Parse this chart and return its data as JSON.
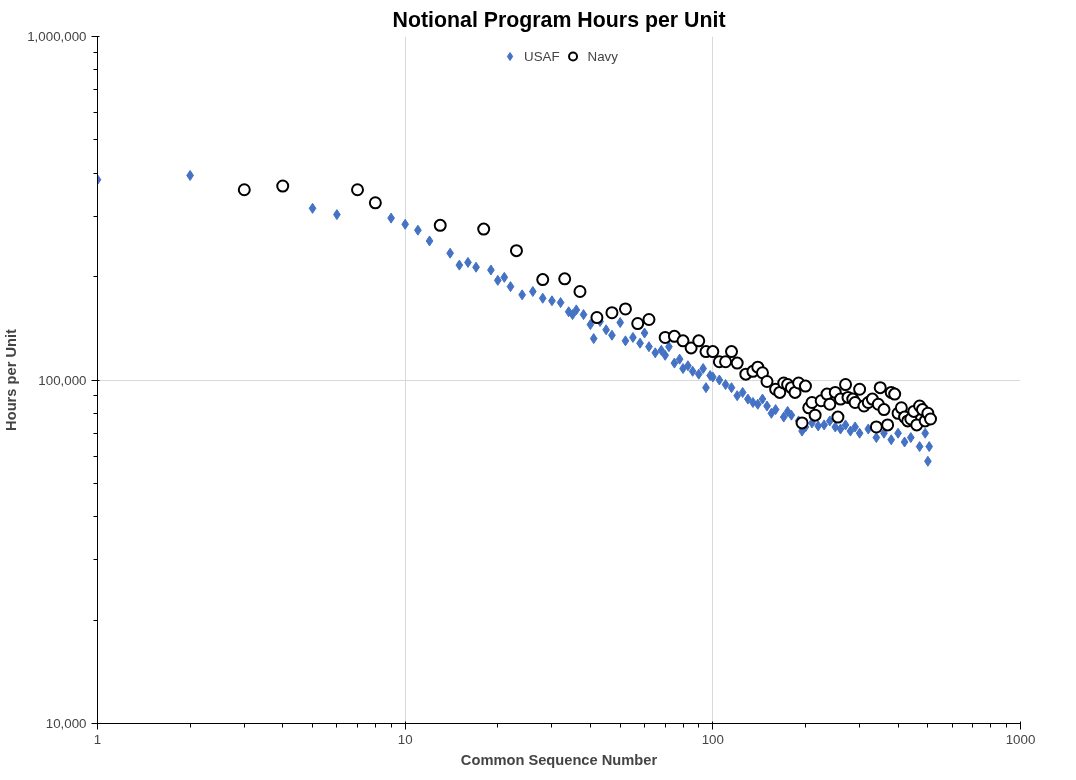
{
  "chart_data": {
    "type": "scatter",
    "title": "Notional Program Hours per Unit",
    "xlabel": "Common Sequence Number",
    "ylabel": "Hours per Unit",
    "log": "xy",
    "grid": true,
    "legend": "top",
    "xlim": [
      1,
      1000
    ],
    "ylim": [
      10000,
      1000000
    ],
    "xticks": [
      1,
      10,
      100,
      1000
    ],
    "yticks": [
      {
        "value": 10000,
        "label": "10,000"
      },
      {
        "value": 100000,
        "label": "100,000"
      },
      {
        "value": 1000000,
        "label": "1,000,000"
      }
    ],
    "series": [
      {
        "name": "USAF",
        "color": "#4472c4",
        "marker": "diamond",
        "x": [
          1,
          2,
          5,
          6,
          9,
          10,
          11,
          12,
          14,
          15,
          16,
          17,
          19,
          20,
          21,
          22,
          24,
          26,
          28,
          30,
          32,
          34,
          35,
          36,
          38,
          40,
          41,
          43,
          45,
          47,
          50,
          52,
          55,
          58,
          60,
          62,
          65,
          68,
          70,
          72,
          75,
          78,
          80,
          83,
          86,
          90,
          93,
          95,
          98,
          100,
          105,
          110,
          115,
          120,
          125,
          130,
          135,
          140,
          145,
          150,
          155,
          160,
          170,
          175,
          180,
          190,
          195,
          200,
          210,
          220,
          230,
          240,
          250,
          260,
          270,
          280,
          290,
          300,
          320,
          340,
          360,
          380,
          400,
          420,
          440,
          470,
          490,
          500,
          505
        ],
        "values": [
          383000,
          394000,
          316000,
          303000,
          296000,
          284000,
          273000,
          254000,
          234000,
          216000,
          220000,
          213000,
          209000,
          195000,
          199000,
          187000,
          177000,
          181000,
          173000,
          170000,
          168000,
          158000,
          155000,
          160000,
          155000,
          145000,
          132000,
          148000,
          140000,
          135000,
          147000,
          130000,
          133000,
          128000,
          137000,
          125000,
          120000,
          122000,
          118000,
          125000,
          112000,
          115000,
          108000,
          110000,
          106000,
          104000,
          108000,
          95000,
          103000,
          102000,
          100000,
          97000,
          95000,
          90000,
          92000,
          88000,
          86000,
          85000,
          88000,
          84000,
          80000,
          82000,
          78000,
          81000,
          79000,
          76000,
          71000,
          73000,
          75000,
          73500,
          74000,
          76000,
          73000,
          72000,
          74000,
          71000,
          73000,
          70000,
          72000,
          68000,
          70000,
          67000,
          70000,
          66000,
          68000,
          64000,
          70000,
          58000,
          64000
        ]
      },
      {
        "name": "Navy",
        "color": "#000000",
        "marker": "circle",
        "x": [
          3,
          4,
          7,
          8,
          13,
          18,
          23,
          28,
          33,
          37,
          42,
          47,
          52,
          57,
          62,
          70,
          75,
          80,
          85,
          90,
          95,
          100,
          105,
          110,
          115,
          120,
          128,
          135,
          140,
          145,
          150,
          160,
          165,
          170,
          175,
          180,
          185,
          190,
          195,
          200,
          205,
          210,
          215,
          225,
          235,
          240,
          250,
          255,
          260,
          270,
          275,
          285,
          290,
          300,
          310,
          320,
          330,
          340,
          345,
          350,
          360,
          370,
          380,
          390,
          400,
          410,
          420,
          430,
          440,
          450,
          460,
          470,
          480,
          490,
          500,
          510
        ],
        "values": [
          358000,
          367000,
          358000,
          328000,
          282000,
          275000,
          238000,
          196000,
          197000,
          181000,
          152000,
          157000,
          161000,
          146000,
          150000,
          133000,
          134000,
          130000,
          124000,
          130000,
          121000,
          121000,
          113000,
          113000,
          121000,
          112000,
          104000,
          106000,
          109000,
          105000,
          99000,
          94000,
          92000,
          98000,
          97000,
          95000,
          92000,
          98000,
          75000,
          96000,
          83000,
          86000,
          79000,
          87000,
          91000,
          85000,
          92000,
          78000,
          88000,
          97000,
          89000,
          88000,
          86000,
          94000,
          84000,
          86000,
          88000,
          73000,
          85000,
          95000,
          82000,
          74000,
          92000,
          91000,
          80000,
          83000,
          78000,
          76000,
          77000,
          81000,
          74000,
          84000,
          82000,
          76000,
          80000,
          77000
        ]
      }
    ]
  }
}
